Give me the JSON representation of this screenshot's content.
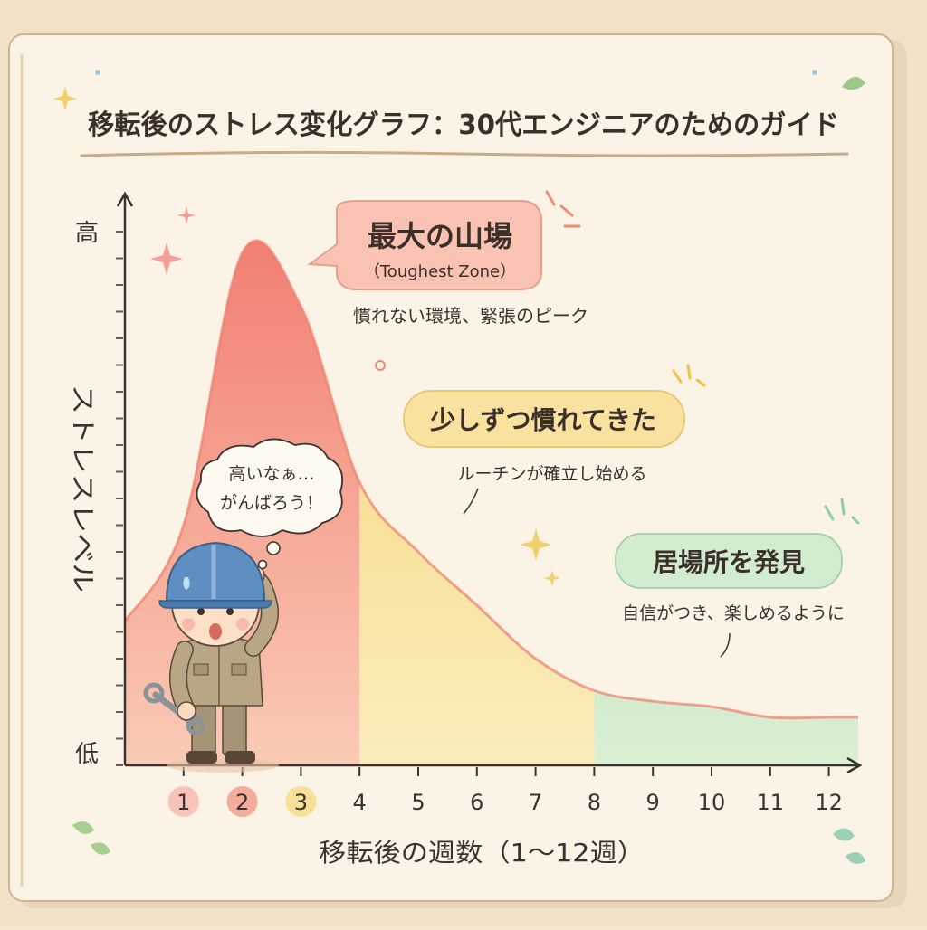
{
  "title": "移転後のストレス変化グラフ：30代エンジニアのためのガイド",
  "colors": {
    "paper": "#fbf4e6",
    "red_zone": "#f07a6c",
    "yellow_zone": "#f6d56a",
    "green_zone": "#9fd4a4",
    "axis": "#3b3230"
  },
  "chart_data": {
    "type": "area",
    "x": [
      1,
      2,
      3,
      4,
      5,
      6,
      7,
      8,
      9,
      10,
      11,
      12
    ],
    "y": [
      4.5,
      9.6,
      8.6,
      5.3,
      4.0,
      3.0,
      2.0,
      1.4,
      1.2,
      1.1,
      0.9,
      0.9
    ],
    "xlabel": "移転後の週数（1〜12週）",
    "ylabel": "ストレスレベル",
    "y_tick_high": "高",
    "y_tick_low": "低",
    "x_tick_labels": [
      "1",
      "2",
      "3",
      "4",
      "5",
      "6",
      "7",
      "8",
      "9",
      "10",
      "11",
      "12"
    ],
    "xlim": [
      0,
      12.5
    ],
    "ylim": [
      0,
      10
    ],
    "zones": [
      {
        "from": 0,
        "to": 4,
        "color": "red"
      },
      {
        "from": 4,
        "to": 8,
        "color": "yellow"
      },
      {
        "from": 8,
        "to": 12.5,
        "color": "green"
      }
    ],
    "annotations": [
      {
        "title": "最大の山場",
        "subtitle": "（Toughest Zone）",
        "note": "慣れない環境、緊張のピーク"
      },
      {
        "title": "少しずつ慣れてきた",
        "note": "ルーチンが確立し始める"
      },
      {
        "title": "居場所を発見",
        "note": "自信がつき、楽しめるように"
      }
    ]
  },
  "character_thought": {
    "line1": "高いなぁ…",
    "line2": "がんばろう！"
  }
}
